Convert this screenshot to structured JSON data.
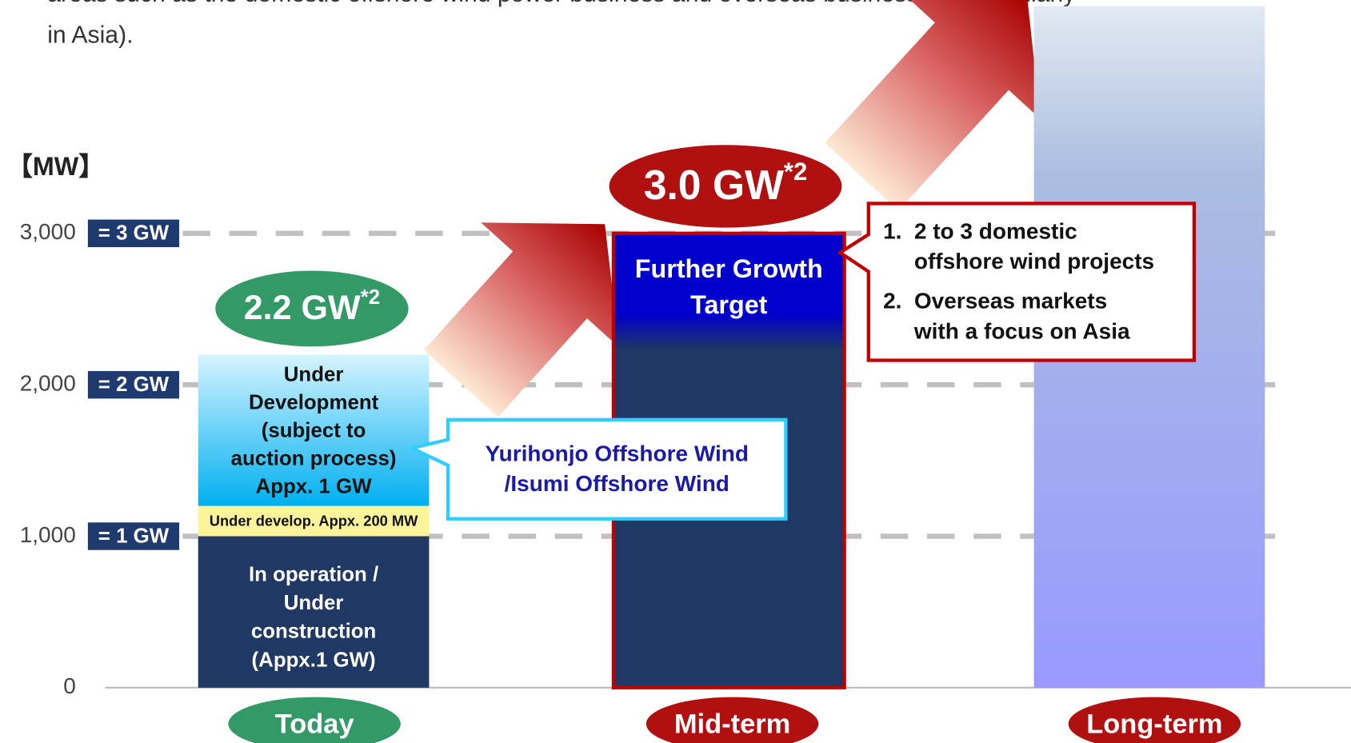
{
  "chart_data": {
    "type": "bar",
    "intro_lines": [
      "areas such as the domestic offshore wind power business and overseas businesses (particularly",
      "in Asia)."
    ],
    "unit_label": "【MW】",
    "categories": [
      "Today",
      "Mid-term",
      "Long-term"
    ],
    "category_colors": [
      "#339966",
      "#b01010",
      "#b01010"
    ],
    "ylim": [
      0,
      4500
    ],
    "yticks": [
      0,
      {
        "value": 1000,
        "label": "1,000"
      },
      {
        "value": 2000,
        "label": "2,000"
      },
      {
        "value": 3000,
        "label": "3,000"
      }
    ],
    "gw_tags": [
      {
        "value": 1000,
        "label": "= 1 GW"
      },
      {
        "value": 2000,
        "label": "= 2 GW"
      },
      {
        "value": 3000,
        "label": "= 3 GW"
      }
    ],
    "grid": true,
    "series": [
      {
        "name": [
          "In operation /",
          "Under",
          "construction",
          "(Appx.1 GW)"
        ],
        "color": "#1f3864",
        "values": [
          1000,
          null,
          null
        ]
      },
      {
        "name": [
          "Under develop. Appx. 200 MW"
        ],
        "color": "#fdf39a",
        "values": [
          200,
          null,
          null
        ]
      },
      {
        "name": [
          "Under",
          "Development",
          "(subject to",
          "auction process)",
          "Appx. 1 GW"
        ],
        "color": "#00b0f0",
        "values": [
          1000,
          null,
          null
        ]
      },
      {
        "name": [
          "Further Growth",
          "Target"
        ],
        "color": "#1f3864",
        "values": [
          null,
          3000,
          null
        ]
      },
      {
        "color": "#9999ff",
        "values": [
          null,
          null,
          4500
        ]
      }
    ],
    "annotations": [
      {
        "text": "2.2 GW",
        "sup": "*2",
        "color": "#339966"
      },
      {
        "text": "3.0 GW",
        "sup": "*2",
        "color": "#b01010"
      }
    ],
    "callout": [
      "Yurihonjo Offshore Wind",
      "/Isumi Offshore Wind"
    ],
    "focus_list": [
      {
        "number": "1.",
        "lines": [
          "2 to 3 domestic",
          "offshore wind projects"
        ]
      },
      {
        "number": "2.",
        "lines": [
          "Overseas markets",
          "with a focus on Asia"
        ]
      }
    ]
  }
}
